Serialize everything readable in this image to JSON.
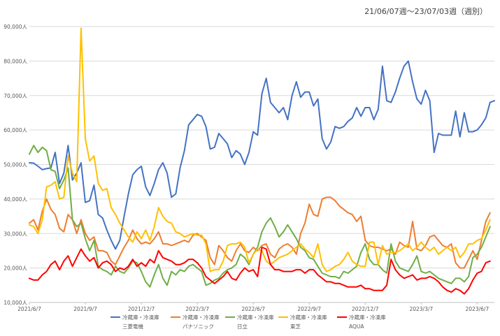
{
  "chart_data": {
    "type": "line",
    "title": "",
    "subtitle": "21/06/07週〜23/07/03週（週別）",
    "xlabel": "",
    "ylabel": "",
    "ylim": [
      10000,
      90000
    ],
    "y_ticks": [
      10000,
      20000,
      30000,
      40000,
      50000,
      60000,
      70000,
      80000,
      90000
    ],
    "y_tick_labels": [
      "10,000人",
      "20,000人",
      "30,000人",
      "40,000人",
      "50,000人",
      "60,000人",
      "70,000人",
      "80,000人",
      "90,000人"
    ],
    "x_tick_labels": [
      "2021/6/7",
      "2021/9/7",
      "2021/12/7",
      "2022/3/7",
      "2022/6/7",
      "2022/9/7",
      "2022/12/7",
      "2023/3/7",
      "2023/6/7"
    ],
    "grid": true,
    "legend_position": "bottom",
    "series": [
      {
        "name": "冷蔵庫・冷凍庫",
        "brand": "三菱電機",
        "color": "#4472C4",
        "values": [
          50500,
          50400,
          49500,
          48500,
          48800,
          49000,
          53500,
          44500,
          47500,
          55500,
          45500,
          47500,
          50500,
          39000,
          39500,
          44000,
          35500,
          34500,
          31000,
          28000,
          25500,
          28000,
          35000,
          41500,
          47000,
          48500,
          49500,
          43500,
          41000,
          44500,
          48500,
          50500,
          47500,
          40500,
          41500,
          49000,
          54000,
          61500,
          63000,
          64500,
          64000,
          61000,
          54500,
          55000,
          59000,
          57500,
          56000,
          52000,
          54000,
          53000,
          50000,
          53500,
          59500,
          58500,
          70500,
          75000,
          68000,
          66500,
          65000,
          66500,
          63000,
          70000,
          74000,
          69500,
          71000,
          71000,
          67000,
          69000,
          57500,
          54500,
          56500,
          61000,
          60500,
          61000,
          62500,
          63500,
          66500,
          64000,
          66500,
          66500,
          63000,
          66000,
          78500,
          68500,
          68000,
          71000,
          75000,
          78500,
          80000,
          74000,
          69000,
          67500,
          71500,
          68500,
          53500,
          59000,
          58500,
          58500,
          58500,
          65500,
          58000,
          65000,
          59500,
          59500,
          60000,
          61500,
          63500,
          68000,
          68500
        ]
      },
      {
        "name": "冷蔵庫・冷凍庫",
        "brand": "パナソニック",
        "color": "#ED7D31",
        "values": [
          33000,
          34000,
          31000,
          36500,
          40000,
          37000,
          35500,
          31500,
          30500,
          35500,
          34000,
          30000,
          34000,
          30000,
          28000,
          29000,
          25000,
          25000,
          24500,
          22000,
          21000,
          23500,
          26000,
          28000,
          31000,
          28500,
          27000,
          27500,
          27000,
          28500,
          30500,
          27000,
          27000,
          26500,
          27000,
          27500,
          28000,
          27500,
          29500,
          30000,
          29000,
          28000,
          23000,
          21000,
          26500,
          25000,
          23000,
          22000,
          25000,
          27000,
          25000,
          24500,
          26000,
          25000,
          26500,
          27000,
          24000,
          23000,
          25500,
          26500,
          27000,
          26000,
          24000,
          30000,
          33000,
          38500,
          35500,
          35000,
          40000,
          40500,
          40500,
          39500,
          38000,
          37000,
          36000,
          35500,
          33500,
          35000,
          28000,
          26500,
          26000,
          26000,
          25500,
          25000,
          25500,
          24000,
          27500,
          26500,
          26000,
          33500,
          25500,
          25000,
          26500,
          29000,
          29500,
          28000,
          26500,
          26000,
          27000,
          21500,
          20000,
          20000,
          22500,
          25000,
          22500,
          28000,
          33500,
          36000
        ]
      },
      {
        "name": "冷蔵庫・冷凍庫",
        "brand": "日立",
        "color": "#70AD47",
        "values": [
          53000,
          55500,
          53500,
          55000,
          54000,
          48500,
          48000,
          43000,
          45500,
          49000,
          34000,
          32000,
          33000,
          28500,
          25000,
          28000,
          20500,
          19500,
          19000,
          18000,
          20500,
          19000,
          18500,
          20000,
          22000,
          21500,
          19000,
          16000,
          14500,
          18000,
          21000,
          17000,
          15000,
          19000,
          18000,
          19500,
          19000,
          20500,
          21000,
          20000,
          19000,
          15000,
          15500,
          16500,
          17000,
          18500,
          19500,
          20000,
          21000,
          24000,
          23000,
          21000,
          24000,
          26000,
          30500,
          33000,
          34500,
          32000,
          29000,
          30500,
          32500,
          30500,
          28500,
          26000,
          25000,
          23000,
          22500,
          20500,
          18500,
          18000,
          17500,
          17500,
          17000,
          19000,
          18500,
          19500,
          20500,
          24500,
          27000,
          22500,
          21000,
          21000,
          19500,
          18500,
          27000,
          22000,
          20000,
          19500,
          19000,
          21000,
          23500,
          19000,
          18500,
          19000,
          18000,
          17000,
          16500,
          16000,
          15500,
          17000,
          17000,
          16000,
          17500,
          23000,
          24000,
          26000,
          29000,
          32000
        ]
      },
      {
        "name": "冷蔵庫・冷凍庫",
        "brand": "東芝",
        "color": "#FFC000",
        "values": [
          32500,
          32000,
          30000,
          34000,
          43500,
          44000,
          45000,
          40000,
          40500,
          52500,
          47500,
          45000,
          89500,
          57500,
          51000,
          52500,
          44500,
          42500,
          43000,
          37500,
          35500,
          33000,
          31000,
          29000,
          27500,
          30500,
          28500,
          31000,
          28000,
          32000,
          37500,
          35000,
          33500,
          33000,
          30500,
          30000,
          29000,
          29500,
          30000,
          29500,
          29500,
          27000,
          19000,
          19500,
          19500,
          22000,
          26500,
          27000,
          27000,
          27500,
          26000,
          21500,
          24000,
          25500,
          25000,
          22000,
          21000,
          22000,
          23000,
          23500,
          24000,
          25000,
          26000,
          27000,
          25500,
          24500,
          23000,
          27000,
          21000,
          19000,
          19500,
          20500,
          21000,
          22500,
          24500,
          22000,
          21000,
          20500,
          20500,
          27500,
          27500,
          21000,
          26500,
          24000,
          24500,
          24500,
          25000,
          26000,
          27000,
          25000,
          26000,
          27500,
          26000,
          25000,
          26000,
          24000,
          25000,
          26000,
          25000,
          26000,
          23000,
          24500,
          27000,
          27000,
          28000,
          28500,
          31000,
          34000
        ]
      },
      {
        "name": "冷蔵庫・冷凍庫",
        "brand": "AQUA",
        "color": "#FF0000",
        "values": [
          17000,
          16500,
          16500,
          18000,
          19000,
          21000,
          22000,
          19500,
          22000,
          23500,
          20500,
          23000,
          25500,
          23500,
          22000,
          23000,
          20000,
          21500,
          22000,
          21000,
          19000,
          20000,
          19500,
          20500,
          22500,
          20500,
          21500,
          20500,
          22500,
          21500,
          25000,
          23000,
          22500,
          22000,
          21000,
          21000,
          21500,
          22500,
          22500,
          21500,
          20000,
          17500,
          16500,
          15500,
          16500,
          17500,
          19000,
          17000,
          16500,
          18500,
          20000,
          19000,
          19500,
          17500,
          26000,
          25500,
          21000,
          19500,
          19500,
          19000,
          19000,
          19000,
          19500,
          19500,
          18500,
          19500,
          19500,
          18000,
          17000,
          16000,
          16000,
          15500,
          15500,
          15000,
          14500,
          14500,
          14500,
          15000,
          14000,
          14000,
          13500,
          13500,
          13500,
          15000,
          22500,
          19500,
          18000,
          17000,
          17500,
          18000,
          16500,
          17000,
          17000,
          17500,
          17000,
          16000,
          14500,
          13500,
          13000,
          14000,
          13500,
          12500,
          14000,
          16500,
          18500,
          19000,
          21500,
          22000
        ]
      }
    ]
  }
}
